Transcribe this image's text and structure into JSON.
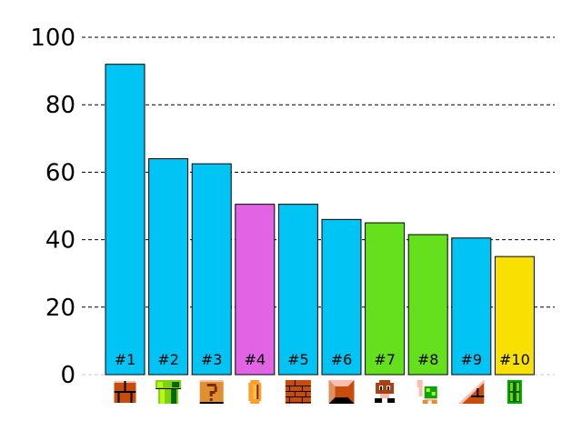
{
  "chart_data": {
    "type": "bar",
    "title": "",
    "xlabel": "",
    "ylabel": "",
    "ylim": [
      0,
      100
    ],
    "yticks": [
      0,
      20,
      40,
      60,
      80,
      100
    ],
    "grid": "horizontal-dashed",
    "categories": [
      "#1",
      "#2",
      "#3",
      "#4",
      "#5",
      "#6",
      "#7",
      "#8",
      "#9",
      "#10"
    ],
    "values": [
      92,
      64,
      62.5,
      50.5,
      50.5,
      46,
      45,
      41.5,
      40.5,
      35
    ],
    "bar_colors": [
      "#00c4f4",
      "#00c4f4",
      "#00c4f4",
      "#e064e4",
      "#00c4f4",
      "#00c4f4",
      "#64e01c",
      "#64e01c",
      "#00c4f4",
      "#f8e000"
    ],
    "category_icons": [
      "stair-block-icon",
      "warp-pipe-icon",
      "question-block-icon",
      "coin-icon",
      "brick-block-icon",
      "hard-block-icon",
      "goomba-icon",
      "koopa-icon",
      "slope-icon",
      "door-icon"
    ]
  }
}
